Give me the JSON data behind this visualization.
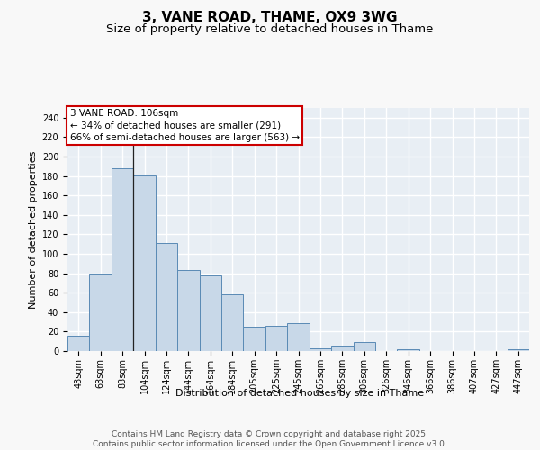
{
  "title1": "3, VANE ROAD, THAME, OX9 3WG",
  "title2": "Size of property relative to detached houses in Thame",
  "xlabel": "Distribution of detached houses by size in Thame",
  "ylabel": "Number of detached properties",
  "categories": [
    "43sqm",
    "63sqm",
    "83sqm",
    "104sqm",
    "124sqm",
    "144sqm",
    "164sqm",
    "184sqm",
    "205sqm",
    "225sqm",
    "245sqm",
    "265sqm",
    "285sqm",
    "306sqm",
    "326sqm",
    "346sqm",
    "366sqm",
    "386sqm",
    "407sqm",
    "427sqm",
    "447sqm"
  ],
  "values": [
    16,
    80,
    188,
    181,
    111,
    83,
    78,
    58,
    25,
    26,
    29,
    3,
    6,
    9,
    0,
    2,
    0,
    0,
    0,
    0,
    2
  ],
  "bar_color": "#c8d8e8",
  "bar_edge_color": "#5a8ab5",
  "background_color": "#e8eef4",
  "grid_color": "#ffffff",
  "annotation_box_text": "3 VANE ROAD: 106sqm\n← 34% of detached houses are smaller (291)\n66% of semi-detached houses are larger (563) →",
  "annotation_box_color": "#cc0000",
  "vline_x_index": 2.5,
  "ylim": [
    0,
    250
  ],
  "yticks": [
    0,
    20,
    40,
    60,
    80,
    100,
    120,
    140,
    160,
    180,
    200,
    220,
    240
  ],
  "footer": "Contains HM Land Registry data © Crown copyright and database right 2025.\nContains public sector information licensed under the Open Government Licence v3.0.",
  "title_fontsize": 11,
  "subtitle_fontsize": 9.5,
  "axis_label_fontsize": 8,
  "tick_fontsize": 7,
  "annotation_fontsize": 7.5,
  "footer_fontsize": 6.5,
  "fig_bg": "#f8f8f8"
}
